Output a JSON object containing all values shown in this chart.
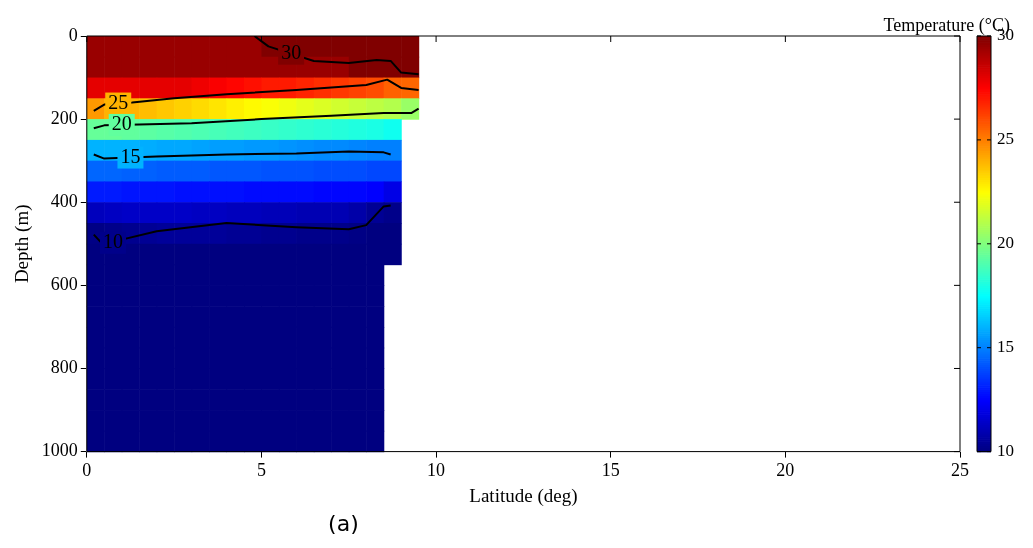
{
  "chart_data": {
    "type": "heatmap",
    "xlabel": "Latitude (deg)",
    "ylabel": "Depth (m)",
    "clabel": "Temperature (°C)",
    "annotations": [
      "(a)"
    ],
    "xlim": [
      0,
      25
    ],
    "xticks": [
      0,
      5,
      10,
      15,
      20,
      25
    ],
    "ylim": [
      1000,
      0
    ],
    "yticks": [
      0,
      200,
      400,
      600,
      800,
      1000
    ],
    "clim": [
      10,
      30
    ],
    "cticks": [
      10,
      15,
      20,
      25,
      30
    ],
    "grid": false,
    "x": [
      0.25,
      0.75,
      1.25,
      1.75,
      2.25,
      2.75,
      3.25,
      3.75,
      4.25,
      4.75,
      5.25,
      5.75,
      6.25,
      6.75,
      7.25,
      7.75,
      8.25,
      8.75,
      9.25
    ],
    "y": [
      25,
      75,
      125,
      175,
      225,
      275,
      325,
      375,
      425,
      475,
      525,
      575,
      625,
      675,
      725,
      775,
      825,
      875,
      925,
      975
    ],
    "cells": [
      [
        29.5,
        29.5,
        29.5,
        29.5,
        29.5,
        29.5,
        29.5,
        29.5,
        29.5,
        29.5,
        30,
        30,
        30,
        30,
        30,
        30,
        30,
        30,
        30
      ],
      [
        29.5,
        29.5,
        29.5,
        29.5,
        29.5,
        29.5,
        29.5,
        29.5,
        29.5,
        29.5,
        29.5,
        29.5,
        29.5,
        29.5,
        29.5,
        30,
        30,
        30,
        30
      ],
      [
        28,
        28,
        28,
        28,
        28,
        28,
        27.8,
        27.6,
        27.4,
        27.2,
        27,
        27,
        26.8,
        26.6,
        26.4,
        26.2,
        26,
        25.6,
        25.5
      ],
      [
        24.5,
        24,
        24,
        23.8,
        23.6,
        23.4,
        23.2,
        23,
        22.8,
        22.6,
        22.4,
        22.2,
        22,
        21.8,
        21.6,
        21.4,
        21.2,
        21,
        20.5
      ],
      [
        19.5,
        19.5,
        19.4,
        19.3,
        19.2,
        19.1,
        19,
        18.9,
        18.8,
        18.7,
        18.6,
        18.5,
        18.4,
        18.3,
        18.2,
        18.1,
        18,
        17.8,
        null
      ],
      [
        16,
        16,
        16,
        15.9,
        15.8,
        15.8,
        15.7,
        15.6,
        15.6,
        15.5,
        15.5,
        15.4,
        15.3,
        15.2,
        15.2,
        15.1,
        15,
        15,
        null
      ],
      [
        14.5,
        14.5,
        14.4,
        14.4,
        14.3,
        14.3,
        14.3,
        14.2,
        14.2,
        14.2,
        14.1,
        14.1,
        14.1,
        14,
        14,
        14,
        13.9,
        13.9,
        null
      ],
      [
        13,
        13,
        12.9,
        12.9,
        12.9,
        12.8,
        12.8,
        12.8,
        12.8,
        12.7,
        12.7,
        12.7,
        12.7,
        12.6,
        12.6,
        12.6,
        12.5,
        12,
        null
      ],
      [
        11.2,
        11.3,
        11.4,
        11.4,
        11.4,
        11.4,
        11.3,
        11.3,
        11.2,
        11.2,
        11.1,
        11.1,
        11,
        11,
        11,
        10.8,
        10.4,
        10.2,
        null
      ],
      [
        10.1,
        10.2,
        10.3,
        10.4,
        10.5,
        10.5,
        10.5,
        10.5,
        10.4,
        10.4,
        10.3,
        10.3,
        10.2,
        10.2,
        10.2,
        10.1,
        10,
        10,
        null
      ],
      [
        10,
        10,
        10,
        10,
        10,
        10,
        10,
        10,
        10,
        10,
        10,
        10,
        10,
        10,
        10,
        10,
        10,
        10,
        null
      ],
      [
        10,
        10,
        10,
        10,
        10,
        10,
        10,
        10,
        10,
        10,
        10,
        10,
        10,
        10,
        10,
        10,
        10,
        null,
        null
      ],
      [
        10,
        10,
        10,
        10,
        10,
        10,
        10,
        10,
        10,
        10,
        10,
        10,
        10,
        10,
        10,
        10,
        10,
        null,
        null
      ],
      [
        10,
        10,
        10,
        10,
        10,
        10,
        10,
        10,
        10,
        10,
        10,
        10,
        10,
        10,
        10,
        10,
        10,
        null,
        null
      ],
      [
        10,
        10,
        10,
        10,
        10,
        10,
        10,
        10,
        10,
        10,
        10,
        10,
        10,
        10,
        10,
        10,
        10,
        null,
        null
      ],
      [
        10,
        10,
        10,
        10,
        10,
        10,
        10,
        10,
        10,
        10,
        10,
        10,
        10,
        10,
        10,
        10,
        10,
        null,
        null
      ],
      [
        10,
        10,
        10,
        10,
        10,
        10,
        10,
        10,
        10,
        10,
        10,
        10,
        10,
        10,
        10,
        10,
        10,
        null,
        null
      ],
      [
        10,
        10,
        10,
        10,
        10,
        10,
        10,
        10,
        10,
        10,
        10,
        10,
        10,
        10,
        10,
        10,
        10,
        null,
        null
      ],
      [
        10,
        10,
        10,
        10,
        10,
        10,
        10,
        10,
        10,
        10,
        10,
        10,
        10,
        10,
        10,
        10,
        10,
        null,
        null
      ],
      [
        10,
        10,
        10,
        10,
        10,
        10,
        10,
        10,
        10,
        10,
        10,
        10,
        10,
        10,
        10,
        10,
        10,
        null,
        null
      ]
    ],
    "series": [
      {
        "type": "line",
        "name": "30",
        "color": "#000000",
        "x": [
          4.8,
          5.2,
          6.5,
          7.5,
          8.3,
          8.7,
          9,
          9.5
        ],
        "values": [
          0,
          25,
          60,
          65,
          58,
          60,
          88,
          92
        ]
      },
      {
        "type": "line",
        "name": "25",
        "color": "#000000",
        "x": [
          0.2,
          0.5,
          1.3,
          2.5,
          4,
          6,
          8,
          8.6,
          9,
          9.5
        ],
        "values": [
          180,
          165,
          160,
          150,
          140,
          130,
          118,
          105,
          125,
          130
        ]
      },
      {
        "type": "line",
        "name": "20",
        "color": "#000000",
        "x": [
          0.2,
          0.5,
          1.5,
          3,
          5,
          7,
          8.5,
          9.3,
          9.5
        ],
        "values": [
          222,
          215,
          213,
          210,
          200,
          192,
          185,
          185,
          175
        ]
      },
      {
        "type": "line",
        "name": "15",
        "color": "#000000",
        "x": [
          0.2,
          0.5,
          2,
          4,
          6,
          7.5,
          8.5,
          8.7
        ],
        "values": [
          285,
          295,
          290,
          285,
          283,
          278,
          280,
          285
        ]
      },
      {
        "type": "line",
        "name": "10",
        "color": "#000000",
        "x": [
          0.2,
          0.5,
          1,
          2,
          4,
          6,
          7.5,
          8,
          8.5,
          8.7
        ],
        "values": [
          478,
          505,
          490,
          470,
          450,
          460,
          465,
          455,
          410,
          408
        ]
      }
    ]
  }
}
